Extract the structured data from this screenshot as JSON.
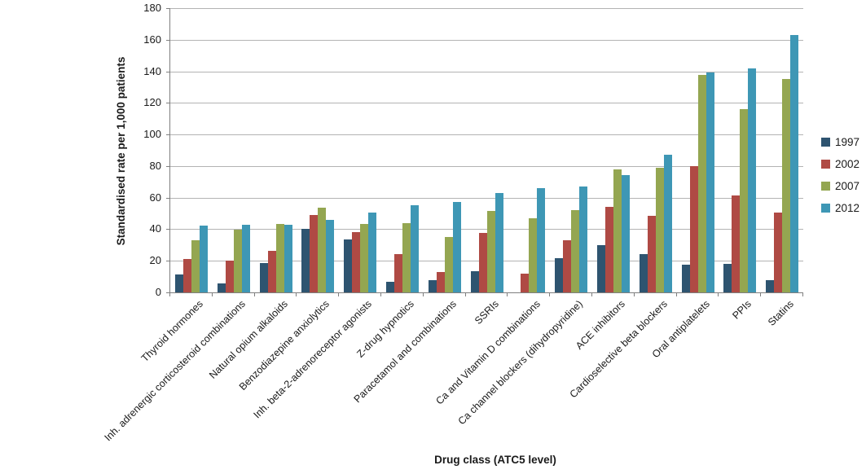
{
  "chart_data": {
    "type": "bar",
    "title": "",
    "xlabel": "Drug class (ATC5 level)",
    "ylabel": "Standardised rate per 1,000 patients",
    "ylim": [
      0,
      180
    ],
    "ytick_step": 20,
    "yticks": [
      0,
      20,
      40,
      60,
      80,
      100,
      120,
      140,
      160,
      180
    ],
    "grid": true,
    "legend_position": "right",
    "categories": [
      "Thyroid hormones",
      "Inh. adrenergic corticosteroid combinations",
      "Natural opium alkaloids",
      "Benzodiazepine anxiolytics",
      "Inh. beta-2-adrenoreceptor agonists",
      "Z-drug hypnotics",
      "Paracetamol and combinations",
      "SSRIs",
      "Ca and Vitamin D combinations",
      "Ca channel blockers (dihydropyridine)",
      "ACE inhibitors",
      "Cardioselective beta blockers",
      "Oral antiplatelets",
      "PPIs",
      "Statins"
    ],
    "series": [
      {
        "name": "1997",
        "color": "#2E5470",
        "values": [
          11.5,
          5.5,
          18.5,
          40,
          33.5,
          6.5,
          7.5,
          13.5,
          0,
          21.5,
          30,
          24.5,
          17.5,
          18,
          8
        ]
      },
      {
        "name": "2002",
        "color": "#AF4A44",
        "values": [
          21,
          20,
          26.5,
          49,
          38,
          24,
          13,
          37.5,
          12,
          33,
          54,
          48.5,
          80,
          61.5,
          50.5
        ]
      },
      {
        "name": "2007",
        "color": "#94A651",
        "values": [
          33,
          39.5,
          43.5,
          53.5,
          43.5,
          44,
          35,
          51.5,
          47,
          52,
          78,
          79,
          137.5,
          116,
          135
        ]
      },
      {
        "name": "2012",
        "color": "#3E97B5",
        "values": [
          42.5,
          43,
          43,
          46,
          50.5,
          55,
          57,
          63,
          66,
          67,
          74.5,
          87,
          139.5,
          142,
          163
        ]
      }
    ]
  }
}
